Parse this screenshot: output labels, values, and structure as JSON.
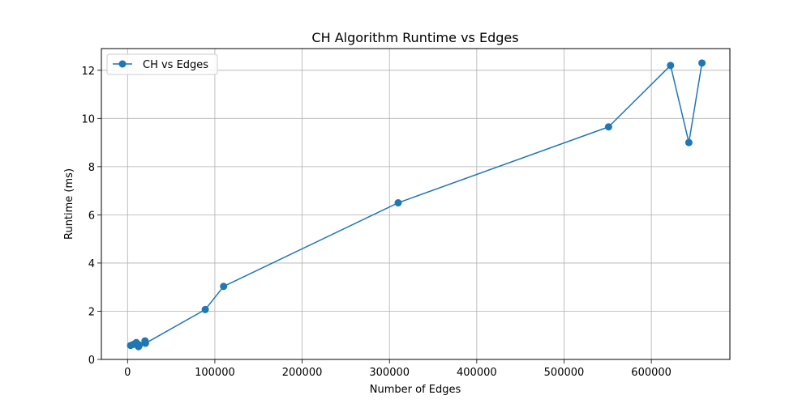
{
  "chart_data": {
    "type": "line",
    "title": "CH Algorithm Runtime vs Edges",
    "xlabel": "Number of Edges",
    "ylabel": "Runtime (ms)",
    "xlim": [
      -30000,
      690000
    ],
    "ylim": [
      0,
      12.9
    ],
    "xticks": [
      0,
      100000,
      200000,
      300000,
      400000,
      500000,
      600000
    ],
    "xtick_labels": [
      "0",
      "100000",
      "200000",
      "300000",
      "400000",
      "500000",
      "600000"
    ],
    "yticks": [
      0,
      2,
      4,
      6,
      8,
      10,
      12
    ],
    "ytick_labels": [
      "0",
      "2",
      "4",
      "6",
      "8",
      "10",
      "12"
    ],
    "grid": true,
    "legend_position": "top-left",
    "series": [
      {
        "name": "CH vs Edges",
        "color": "#1f77b4",
        "marker": "circle",
        "x": [
          3500,
          7000,
          10000,
          12500,
          13500,
          20000,
          20500,
          89000,
          110000,
          310000,
          551000,
          622000,
          643000,
          658000
        ],
        "y": [
          0.58,
          0.63,
          0.7,
          0.53,
          0.6,
          0.77,
          0.67,
          2.07,
          3.03,
          6.5,
          9.65,
          12.2,
          9.0,
          12.3
        ]
      }
    ]
  }
}
